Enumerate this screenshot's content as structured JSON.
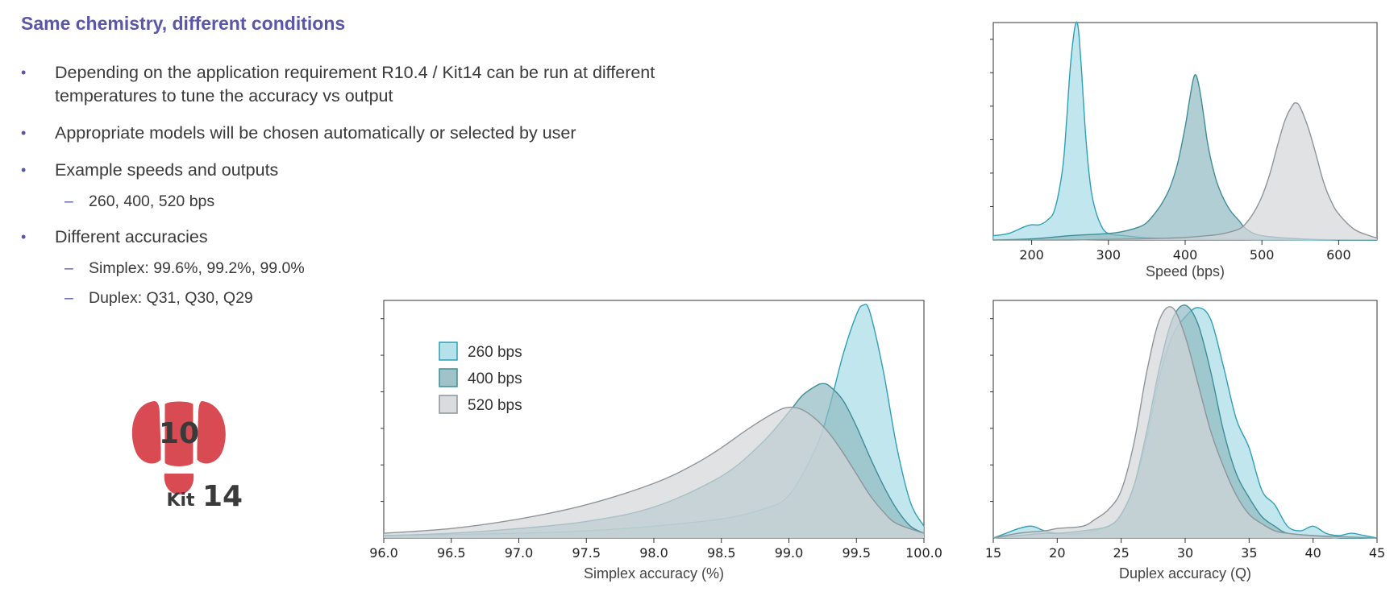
{
  "slide": {
    "title": "Same chemistry, different conditions",
    "bullets": [
      {
        "text": "Depending on the application requirement R10.4 / Kit14 can be run at different temperatures to tune the accuracy vs output"
      },
      {
        "text": "Appropriate models will be chosen automatically or selected by user"
      },
      {
        "text": "Example speeds and outputs",
        "sub": [
          "260, 400, 520 bps"
        ]
      },
      {
        "text": "Different accuracies",
        "sub": [
          "Simplex: 99.6%, 99.2%, 99.0%",
          "Duplex: Q31, Q30, Q29"
        ]
      }
    ]
  },
  "logo": {
    "number": "10",
    "kit": "Kit",
    "kit_number": "14",
    "color": "#d94b52"
  },
  "colors": {
    "series": [
      "#2ea0b5",
      "#3e8d98",
      "#8e9599"
    ],
    "fills": [
      "#a8dce5",
      "#8fb9c1",
      "#d3d5d8"
    ]
  },
  "chart_data": [
    {
      "type": "area",
      "subtype": "density",
      "xlabel": "Speed (bps)",
      "xlim": [
        150,
        650
      ],
      "xticks": [
        200,
        300,
        400,
        500,
        600
      ],
      "ylim": [
        0,
        1
      ],
      "series": [
        {
          "name": "260 bps",
          "x": [
            150,
            170,
            190,
            200,
            210,
            220,
            230,
            240,
            245,
            250,
            255,
            258,
            260,
            262,
            265,
            270,
            275,
            280,
            290,
            300,
            320,
            350,
            400,
            450,
            500,
            550,
            600,
            650
          ],
          "y": [
            0.02,
            0.03,
            0.06,
            0.07,
            0.07,
            0.09,
            0.14,
            0.32,
            0.52,
            0.78,
            0.95,
            1.0,
            0.99,
            0.93,
            0.78,
            0.5,
            0.3,
            0.18,
            0.07,
            0.03,
            0.02,
            0.01,
            0.005,
            0.003,
            0.002,
            0.001,
            0.0,
            0.0
          ]
        },
        {
          "name": "400 bps",
          "x": [
            150,
            200,
            250,
            300,
            320,
            340,
            350,
            360,
            370,
            380,
            390,
            400,
            405,
            410,
            413,
            416,
            420,
            425,
            430,
            440,
            450,
            460,
            470,
            480,
            500,
            550,
            600,
            650
          ],
          "y": [
            0.0,
            0.005,
            0.02,
            0.03,
            0.04,
            0.06,
            0.08,
            0.12,
            0.17,
            0.24,
            0.35,
            0.52,
            0.63,
            0.73,
            0.76,
            0.74,
            0.67,
            0.55,
            0.43,
            0.28,
            0.19,
            0.13,
            0.09,
            0.05,
            0.02,
            0.005,
            0.0,
            0.0
          ]
        },
        {
          "name": "520 bps",
          "x": [
            150,
            250,
            300,
            350,
            400,
            430,
            450,
            470,
            480,
            490,
            500,
            510,
            520,
            530,
            540,
            545,
            550,
            560,
            570,
            580,
            590,
            600,
            620,
            640,
            650
          ],
          "y": [
            0.0,
            0.0,
            0.003,
            0.006,
            0.012,
            0.02,
            0.03,
            0.05,
            0.08,
            0.13,
            0.2,
            0.3,
            0.43,
            0.55,
            0.62,
            0.63,
            0.61,
            0.52,
            0.4,
            0.27,
            0.18,
            0.12,
            0.05,
            0.02,
            0.01
          ]
        }
      ]
    },
    {
      "type": "area",
      "subtype": "density",
      "xlabel": "Simplex accuracy (%)",
      "xlim": [
        96.0,
        100.0
      ],
      "xticks": [
        96.0,
        96.5,
        97.0,
        97.5,
        98.0,
        98.5,
        99.0,
        99.5,
        100.0
      ],
      "ylim": [
        0,
        1
      ],
      "legend": {
        "position": "top-left",
        "entries": [
          "260 bps",
          "400 bps",
          "520 bps"
        ]
      },
      "series": [
        {
          "name": "260 bps",
          "x": [
            96.0,
            96.5,
            97.0,
            97.5,
            98.0,
            98.5,
            98.8,
            99.0,
            99.2,
            99.3,
            99.4,
            99.5,
            99.55,
            99.6,
            99.7,
            99.8,
            99.9,
            100.0
          ],
          "y": [
            0.01,
            0.015,
            0.02,
            0.03,
            0.05,
            0.08,
            0.12,
            0.18,
            0.38,
            0.55,
            0.77,
            0.94,
            0.98,
            0.95,
            0.7,
            0.38,
            0.15,
            0.05
          ]
        },
        {
          "name": "400 bps",
          "x": [
            96.0,
            96.5,
            97.0,
            97.5,
            98.0,
            98.5,
            98.8,
            99.0,
            99.1,
            99.2,
            99.25,
            99.3,
            99.4,
            99.5,
            99.6,
            99.7,
            99.8,
            99.9,
            100.0
          ],
          "y": [
            0.01,
            0.02,
            0.04,
            0.07,
            0.13,
            0.26,
            0.4,
            0.53,
            0.6,
            0.64,
            0.65,
            0.64,
            0.58,
            0.47,
            0.34,
            0.22,
            0.12,
            0.05,
            0.02
          ]
        },
        {
          "name": "520 bps",
          "x": [
            96.0,
            96.5,
            97.0,
            97.5,
            98.0,
            98.3,
            98.5,
            98.7,
            98.9,
            99.0,
            99.1,
            99.2,
            99.3,
            99.4,
            99.5,
            99.6,
            99.7,
            99.8,
            100.0
          ],
          "y": [
            0.02,
            0.04,
            0.08,
            0.14,
            0.23,
            0.31,
            0.38,
            0.46,
            0.53,
            0.55,
            0.54,
            0.5,
            0.44,
            0.36,
            0.27,
            0.18,
            0.11,
            0.06,
            0.02
          ]
        }
      ]
    },
    {
      "type": "area",
      "subtype": "density",
      "xlabel": "Duplex accuracy (Q)",
      "xlim": [
        15,
        45
      ],
      "xticks": [
        15,
        20,
        25,
        30,
        35,
        40,
        45
      ],
      "ylim": [
        0,
        1
      ],
      "series": [
        {
          "name": "260 bps",
          "x": [
            15,
            16,
            17,
            18,
            19,
            20,
            22,
            24,
            25,
            26,
            27,
            28,
            29,
            30,
            31,
            32,
            33,
            34,
            35,
            36,
            37,
            38,
            39,
            40,
            41,
            42,
            43,
            44,
            45
          ],
          "y": [
            0.0,
            0.02,
            0.04,
            0.05,
            0.03,
            0.02,
            0.02,
            0.05,
            0.1,
            0.22,
            0.42,
            0.68,
            0.85,
            0.93,
            0.97,
            0.92,
            0.72,
            0.5,
            0.38,
            0.2,
            0.14,
            0.05,
            0.03,
            0.05,
            0.02,
            0.01,
            0.02,
            0.01,
            0.0
          ]
        },
        {
          "name": "400 bps",
          "x": [
            15,
            17,
            19,
            20,
            22,
            24,
            25,
            26,
            27,
            28,
            29,
            30,
            31,
            32,
            33,
            34,
            35,
            36,
            37,
            38,
            40,
            42,
            45
          ],
          "y": [
            0.0,
            0.01,
            0.02,
            0.02,
            0.03,
            0.05,
            0.1,
            0.22,
            0.45,
            0.72,
            0.92,
            0.98,
            0.9,
            0.7,
            0.45,
            0.27,
            0.17,
            0.09,
            0.05,
            0.02,
            0.01,
            0.0,
            0.0
          ]
        },
        {
          "name": "520 bps",
          "x": [
            15,
            17,
            19,
            20,
            22,
            23,
            24,
            25,
            26,
            27,
            28,
            29,
            30,
            31,
            32,
            33,
            34,
            35,
            36,
            37,
            38,
            40,
            45
          ],
          "y": [
            0.0,
            0.02,
            0.03,
            0.04,
            0.05,
            0.08,
            0.12,
            0.2,
            0.4,
            0.7,
            0.92,
            0.97,
            0.85,
            0.65,
            0.45,
            0.3,
            0.18,
            0.1,
            0.06,
            0.03,
            0.02,
            0.01,
            0.0
          ]
        }
      ]
    }
  ]
}
